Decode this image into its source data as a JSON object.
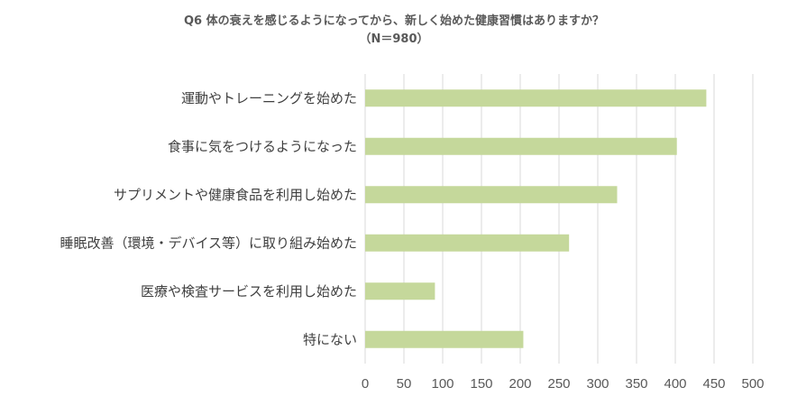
{
  "chart_data": {
    "type": "bar",
    "orientation": "horizontal",
    "title": "Q6 体の衰えを感じるようになってから、新しく始めた健康習慣はありますか？",
    "subtitle": "（N＝980）",
    "categories": [
      "運動やトレーニングを始めた",
      "食事に気をつけるようになった",
      "サプリメントや健康食品を利用し始めた",
      "睡眠改善（環境・デバイス等）に取り組み始めた",
      "医療や検査サービスを利用し始めた",
      "特にない"
    ],
    "values": [
      440,
      402,
      325,
      263,
      90,
      204
    ],
    "xlim": [
      0,
      500
    ],
    "xticks": [
      "0",
      "50",
      "100",
      "150",
      "200",
      "250",
      "300",
      "350",
      "400",
      "450",
      "500"
    ],
    "grid": true,
    "legend": "none",
    "colors": {
      "bar": "#c5d89b",
      "grid": "#d9d9d9",
      "text": "#404040"
    }
  }
}
